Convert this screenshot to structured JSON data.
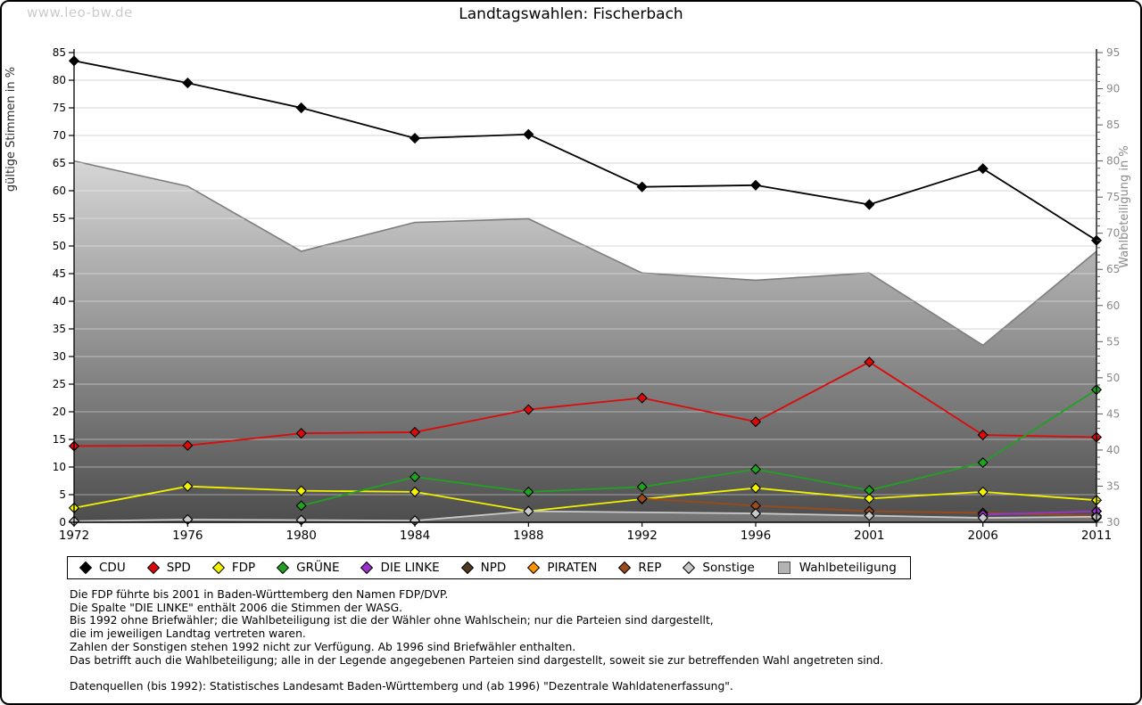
{
  "watermark": "www.leo-bw.de",
  "title": "Landtagswahlen: Fischerbach",
  "chart_data": {
    "type": "line",
    "title": "Landtagswahlen: Fischerbach",
    "categories": [
      1972,
      1976,
      1980,
      1984,
      1988,
      1992,
      1996,
      2001,
      2006,
      2011
    ],
    "left_axis": {
      "label": "gültige Stimmen in %",
      "min": 0,
      "max": 85,
      "step": 5
    },
    "right_axis": {
      "label": "Wahlbeteiligung in %",
      "min": 30,
      "max": 95,
      "step": 5
    },
    "grid": true,
    "legend_position": "bottom",
    "series": [
      {
        "name": "CDU",
        "axis": "left",
        "kind": "line",
        "marker": "diamond",
        "color": "#000000",
        "values": [
          83.5,
          79.5,
          75.0,
          69.5,
          70.2,
          60.7,
          61.0,
          57.5,
          64.0,
          51.0
        ]
      },
      {
        "name": "SPD",
        "axis": "left",
        "kind": "line",
        "marker": "diamond",
        "color": "#dd0a0a",
        "values": [
          13.8,
          13.9,
          16.1,
          16.3,
          20.4,
          22.5,
          18.2,
          29.0,
          15.8,
          15.4
        ]
      },
      {
        "name": "FDP",
        "axis": "left",
        "kind": "line",
        "marker": "diamond",
        "color": "#f2f200",
        "values": [
          2.6,
          6.5,
          5.7,
          5.5,
          2.0,
          4.2,
          6.2,
          4.3,
          5.5,
          4.0
        ]
      },
      {
        "name": "GRÜNE",
        "axis": "left",
        "kind": "line",
        "marker": "diamond",
        "color": "#21a121",
        "values": [
          null,
          null,
          3.0,
          8.2,
          5.5,
          6.4,
          9.6,
          5.8,
          10.8,
          24.0
        ]
      },
      {
        "name": "DIE LINKE",
        "axis": "left",
        "kind": "line",
        "marker": "diamond",
        "color": "#9933cc",
        "values": [
          null,
          null,
          null,
          null,
          null,
          null,
          null,
          null,
          1.4,
          2.0
        ]
      },
      {
        "name": "NPD",
        "axis": "left",
        "kind": "line",
        "marker": "diamond",
        "color": "#503921",
        "values": [
          null,
          null,
          null,
          null,
          null,
          null,
          null,
          null,
          null,
          0.8
        ]
      },
      {
        "name": "PIRATEN",
        "axis": "left",
        "kind": "line",
        "marker": "diamond",
        "color": "#ff9400",
        "values": [
          null,
          null,
          null,
          null,
          null,
          null,
          null,
          null,
          null,
          2.0
        ]
      },
      {
        "name": "REP",
        "axis": "left",
        "kind": "line",
        "marker": "diamond",
        "color": "#9c4a1a",
        "values": [
          null,
          null,
          null,
          null,
          null,
          4.3,
          3.0,
          2.0,
          1.7,
          1.2
        ]
      },
      {
        "name": "Sonstige",
        "axis": "left",
        "kind": "line",
        "marker": "diamond",
        "color": "#c9c9c9",
        "values": [
          0.2,
          0.5,
          0.4,
          0.3,
          2.0,
          null,
          1.6,
          1.2,
          0.8,
          1.0
        ]
      },
      {
        "name": "Wahlbeteiligung",
        "axis": "right",
        "kind": "area",
        "marker": "square",
        "color": "#7d7d7d",
        "fill_gradient": [
          "#ffffff",
          "#4d4d4d"
        ],
        "values": [
          80,
          76.5,
          67.5,
          71.5,
          72,
          64.5,
          63.5,
          64.5,
          54.5,
          67.5
        ]
      }
    ]
  },
  "footnotes": [
    "Die FDP führte bis 2001 in Baden-Württemberg den Namen FDP/DVP.",
    "Die Spalte \"DIE LINKE\" enthält 2006 die Stimmen der WASG.",
    "Bis 1992 ohne Briefwähler; die Wahlbeteiligung ist die der Wähler ohne Wahlschein; nur die Parteien sind dargestellt,",
    "die im jeweiligen Landtag vertreten waren.",
    "Zahlen der Sonstigen stehen 1992 nicht zur Verfügung. Ab 1996 sind Briefwähler enthalten.",
    "Das betrifft auch die Wahlbeteiligung; alle in der Legende angegebenen Parteien sind dargestellt, soweit sie zur betreffenden Wahl angetreten sind.",
    "",
    "Datenquellen (bis 1992): Statistisches Landesamt Baden-Württemberg und (ab 1996) \"Dezentrale Wahldatenerfassung\"."
  ]
}
